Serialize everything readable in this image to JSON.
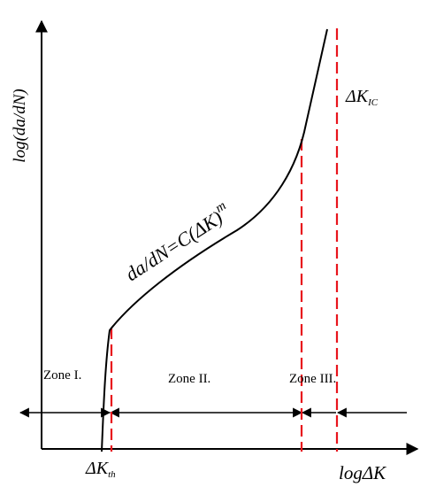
{
  "diagram": {
    "axes": {
      "y_label": "log(da/dN)",
      "x_label": "logΔK"
    },
    "equation": {
      "lhs": "da/dN=C(",
      "delta_k": "ΔK",
      "rhs": ")",
      "exponent": "m"
    },
    "thresholds": {
      "k_th": {
        "main": "ΔK",
        "sub": "th"
      },
      "k_ic": {
        "main": "ΔK",
        "sub": "IC"
      }
    },
    "zones": [
      {
        "label": "Zone I."
      },
      {
        "label": "Zone II."
      },
      {
        "label": "Zone III."
      }
    ],
    "colors": {
      "curve": "#000000",
      "axes": "#000000",
      "dashed_lines": "#e8141c"
    }
  }
}
